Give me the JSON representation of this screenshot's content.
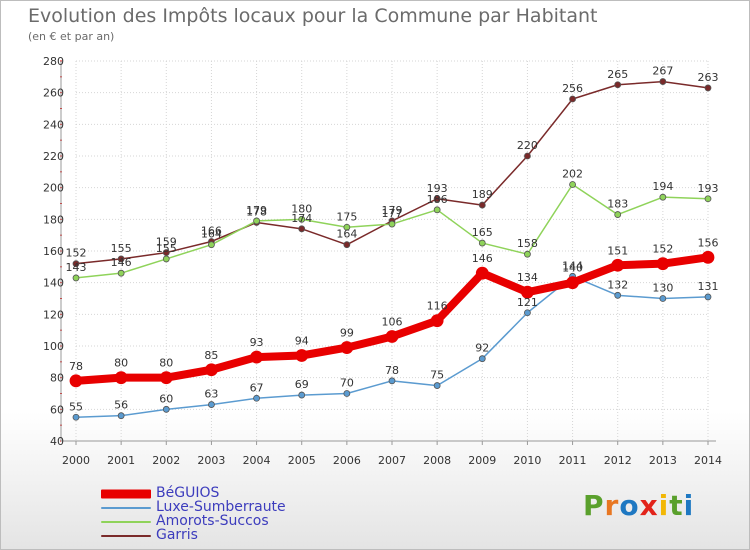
{
  "header": {
    "title": "Evolution des Impôts locaux pour la Commune par Habitant",
    "subtitle": "(en € et par an)"
  },
  "brand": {
    "letters": [
      "P",
      "r",
      "o",
      "x",
      "i",
      "t",
      "i"
    ],
    "colors": [
      "#5aa02c",
      "#e87722",
      "#1e78c2",
      "#e2231a",
      "#f2b705",
      "#5aa02c",
      "#1e78c2"
    ]
  },
  "chart_data": {
    "type": "line",
    "title": "Evolution des Impôts locaux pour la Commune par Habitant",
    "subtitle": "(en € et par an)",
    "xlabel": "",
    "ylabel": "",
    "x": [
      "2000",
      "2001",
      "2002",
      "2003",
      "2004",
      "2005",
      "2006",
      "2007",
      "2008",
      "2009",
      "2010",
      "2011",
      "2012",
      "2013",
      "2014"
    ],
    "ylim": [
      40,
      280
    ],
    "yticks": [
      40,
      60,
      80,
      100,
      120,
      140,
      160,
      180,
      200,
      220,
      240,
      260,
      280
    ],
    "grid": true,
    "legend_position": "bottom-left",
    "series": [
      {
        "name": "BéGUIOS",
        "color": "#e80000",
        "values": [
          78,
          80,
          80,
          85,
          93,
          94,
          99,
          106,
          116,
          146,
          134,
          140,
          151,
          152,
          156
        ]
      },
      {
        "name": "Luxe-Sumberraute",
        "color": "#5b9bd0",
        "values": [
          55,
          56,
          60,
          63,
          67,
          69,
          70,
          78,
          75,
          92,
          121,
          144,
          132,
          130,
          131
        ]
      },
      {
        "name": "Amorots-Succos",
        "color": "#8fd35a",
        "values": [
          143,
          146,
          155,
          164,
          179,
          180,
          175,
          177,
          186,
          165,
          158,
          202,
          183,
          194,
          193
        ]
      },
      {
        "name": "Garris",
        "color": "#7a2a2a",
        "values": [
          152,
          155,
          159,
          166,
          178,
          174,
          164,
          179,
          193,
          189,
          220,
          256,
          265,
          267,
          263
        ]
      }
    ]
  }
}
